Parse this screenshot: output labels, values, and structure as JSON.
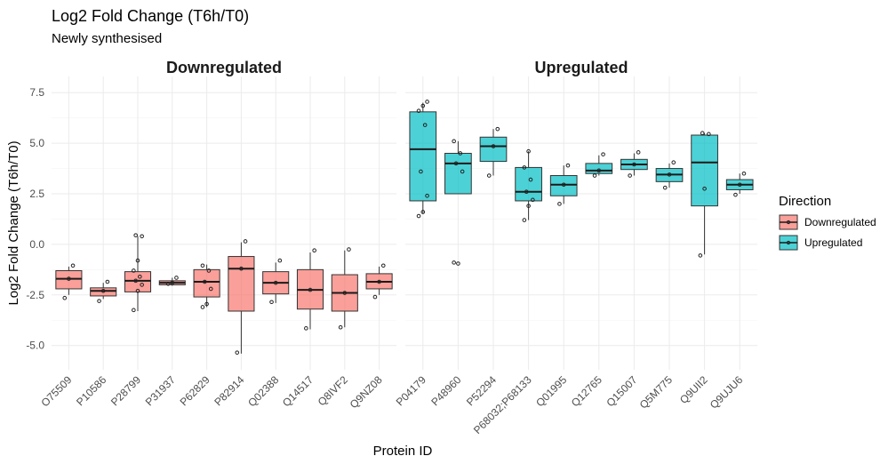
{
  "chart_data": {
    "type": "boxplot",
    "title": "Log2 Fold Change (T6h/T0)",
    "subtitle": "Newly synthesised",
    "xlabel": "Protein ID",
    "ylabel": "Log2 Fold Change (T6h/T0)",
    "ylim": [
      -6.2,
      8.3
    ],
    "yticks": [
      7.5,
      5.0,
      2.5,
      0.0,
      -2.5,
      -5.0
    ],
    "ytick_labels": [
      "7.5",
      "5.0",
      "2.5",
      "0.0",
      "-2.5",
      "-5.0"
    ],
    "grid": true,
    "legend": {
      "title": "Direction",
      "position": "right",
      "entries": [
        {
          "label": "Downregulated",
          "color": "#F8766D"
        },
        {
          "label": "Upregulated",
          "color": "#00BFC4"
        }
      ]
    },
    "panels": [
      {
        "name": "Downregulated",
        "color": "#F8766D",
        "categories": [
          "O75509",
          "P10586",
          "P28799",
          "P31937",
          "P62829",
          "P82914",
          "Q02388",
          "Q14517",
          "Q8IVF2",
          "Q9NZ08"
        ],
        "boxes": [
          {
            "id": "O75509",
            "min": -2.5,
            "q1": -2.2,
            "median": -1.7,
            "q3": -1.3,
            "max": -1.1,
            "points": [
              -2.65,
              -1.7,
              -1.05
            ]
          },
          {
            "id": "P10586",
            "min": -2.7,
            "q1": -2.55,
            "median": -2.3,
            "q3": -2.15,
            "max": -1.9,
            "points": [
              -2.8,
              -2.3,
              -1.85
            ]
          },
          {
            "id": "P28799",
            "min": -3.3,
            "q1": -2.35,
            "median": -1.8,
            "q3": -1.35,
            "max": 0.4,
            "points": [
              -3.25,
              -2.3,
              -2.0,
              -1.8,
              -1.6,
              -1.3,
              -0.8,
              0.4,
              0.45
            ]
          },
          {
            "id": "P31937",
            "min": -2.05,
            "q1": -2.0,
            "median": -1.9,
            "q3": -1.8,
            "max": -1.65,
            "points": [
              -1.95,
              -1.9,
              -1.65
            ]
          },
          {
            "id": "P62829",
            "min": -3.1,
            "q1": -2.6,
            "median": -1.85,
            "q3": -1.25,
            "max": -1.0,
            "points": [
              -3.1,
              -2.95,
              -2.2,
              -1.85,
              -1.3,
              -1.05
            ]
          },
          {
            "id": "P82914",
            "min": -5.4,
            "q1": -3.3,
            "median": -1.2,
            "q3": -0.6,
            "max": 0.1,
            "points": [
              -5.35,
              -1.2,
              0.15
            ]
          },
          {
            "id": "Q02388",
            "min": -2.9,
            "q1": -2.45,
            "median": -1.9,
            "q3": -1.35,
            "max": -0.9,
            "points": [
              -2.85,
              -1.9,
              -0.8
            ]
          },
          {
            "id": "Q14517",
            "min": -4.2,
            "q1": -3.2,
            "median": -2.25,
            "q3": -1.25,
            "max": -0.4,
            "points": [
              -4.15,
              -2.25,
              -0.3
            ]
          },
          {
            "id": "Q8IVF2",
            "min": -4.1,
            "q1": -3.3,
            "median": -2.4,
            "q3": -1.5,
            "max": -0.3,
            "points": [
              -4.1,
              -2.4,
              -0.25
            ]
          },
          {
            "id": "Q9NZ08",
            "min": -2.5,
            "q1": -2.2,
            "median": -1.85,
            "q3": -1.45,
            "max": -1.1,
            "points": [
              -2.6,
              -1.85,
              -1.05
            ]
          }
        ]
      },
      {
        "name": "Upregulated",
        "color": "#00BFC4",
        "categories": [
          "P04179",
          "P48960",
          "P52294",
          "P68032;P68133",
          "Q01995",
          "Q12765",
          "Q15007",
          "Q5M775",
          "Q9UII2",
          "Q9UJU6"
        ],
        "boxes": [
          {
            "id": "P04179",
            "min": 1.5,
            "q1": 2.15,
            "median": 4.7,
            "q3": 6.55,
            "max": 7.0,
            "points": [
              1.4,
              1.6,
              2.4,
              3.6,
              5.9,
              6.6,
              6.85,
              7.05
            ]
          },
          {
            "id": "P48960",
            "min": 2.5,
            "q1": 2.5,
            "median": 4.0,
            "q3": 4.5,
            "max": 5.1,
            "points": [
              -0.9,
              -0.95,
              3.6,
              4.0,
              4.5,
              5.1
            ]
          },
          {
            "id": "P52294",
            "min": 3.4,
            "q1": 4.1,
            "median": 4.85,
            "q3": 5.3,
            "max": 5.7,
            "points": [
              3.4,
              4.85,
              5.7
            ]
          },
          {
            "id": "P68032;P68133",
            "min": 1.2,
            "q1": 2.15,
            "median": 2.6,
            "q3": 3.8,
            "max": 4.6,
            "points": [
              1.2,
              1.9,
              2.2,
              2.6,
              3.2,
              3.8,
              4.6
            ]
          },
          {
            "id": "Q01995",
            "min": 2.0,
            "q1": 2.4,
            "median": 2.95,
            "q3": 3.4,
            "max": 3.9,
            "points": [
              2.0,
              2.95,
              3.9
            ]
          },
          {
            "id": "Q12765",
            "min": 3.4,
            "q1": 3.5,
            "median": 3.65,
            "q3": 4.0,
            "max": 4.4,
            "points": [
              3.4,
              3.65,
              4.45
            ]
          },
          {
            "id": "Q15007",
            "min": 3.4,
            "q1": 3.7,
            "median": 3.95,
            "q3": 4.2,
            "max": 4.5,
            "points": [
              3.4,
              3.95,
              4.55
            ]
          },
          {
            "id": "Q5M775",
            "min": 2.8,
            "q1": 3.1,
            "median": 3.45,
            "q3": 3.75,
            "max": 4.0,
            "points": [
              2.8,
              3.45,
              4.05
            ]
          },
          {
            "id": "Q9UII2",
            "min": -0.5,
            "q1": 1.9,
            "median": 4.05,
            "q3": 5.4,
            "max": 5.5,
            "points": [
              -0.55,
              2.75,
              5.45,
              5.5
            ]
          },
          {
            "id": "Q9UJU6",
            "min": 2.5,
            "q1": 2.7,
            "median": 2.95,
            "q3": 3.2,
            "max": 3.5,
            "points": [
              2.45,
              2.95,
              3.5
            ]
          }
        ]
      }
    ]
  }
}
